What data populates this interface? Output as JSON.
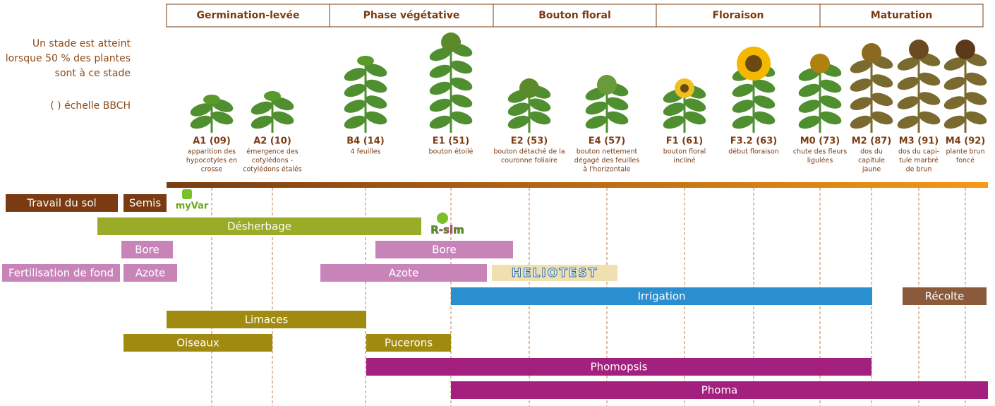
{
  "phases": [
    "Germination-levée",
    "Phase végétative",
    "Bouton floral",
    "Floraison",
    "Maturation"
  ],
  "note": {
    "lines": [
      "Un stade est atteint",
      "lorsque 50 % des plantes",
      "sont à ce stade"
    ],
    "bbch": "( ) échelle BBCH"
  },
  "stages": [
    {
      "code": "A1 (09)",
      "description": [
        "apparition des",
        "hypocotyles en",
        "crosse"
      ]
    },
    {
      "code": "A2 (10)",
      "description": [
        "émergence des",
        "cotylédons -",
        "cotylédons étalés"
      ]
    },
    {
      "code": "B4 (14)",
      "description": [
        "4 feuilles"
      ]
    },
    {
      "code": "E1 (51)",
      "description": [
        "bouton étoilé"
      ]
    },
    {
      "code": "E2 (53)",
      "description": [
        "bouton détaché de la",
        "couronne foliaire"
      ]
    },
    {
      "code": "E4 (57)",
      "description": [
        "bouton nettement",
        "dégagé des feuilles",
        "à l'horizontale"
      ]
    },
    {
      "code": "F1 (61)",
      "description": [
        "bouton floral",
        "incliné"
      ]
    },
    {
      "code": "F3.2 (63)",
      "description": [
        "début floraison"
      ]
    },
    {
      "code": "M0 (73)",
      "description": [
        "chute des fleurs",
        "ligulées"
      ]
    },
    {
      "code": "M2 (87)",
      "description": [
        "dos du",
        "capitule",
        "jaune"
      ]
    },
    {
      "code": "M3 (91)",
      "description": [
        "dos du capi-",
        "tule marbré",
        "de brun"
      ]
    },
    {
      "code": "M4 (92)",
      "description": [
        "plante brun",
        "foncé"
      ]
    }
  ],
  "bars": [
    {
      "label": "Travail du sol"
    },
    {
      "label": "Semis"
    },
    {
      "label": "Désherbage"
    },
    {
      "label": "Bore"
    },
    {
      "label": "Bore"
    },
    {
      "label": "Fertilisation de fond"
    },
    {
      "label": "Azote"
    },
    {
      "label": "Azote"
    },
    {
      "label": "Irrigation"
    },
    {
      "label": "Récolte"
    },
    {
      "label": "Limaces"
    },
    {
      "label": "Oiseaux"
    },
    {
      "label": "Pucerons"
    },
    {
      "label": "Phomopsis"
    },
    {
      "label": "Phoma"
    }
  ],
  "logos": [
    "myVar",
    "R-sim",
    "HELIOTEST"
  ]
}
